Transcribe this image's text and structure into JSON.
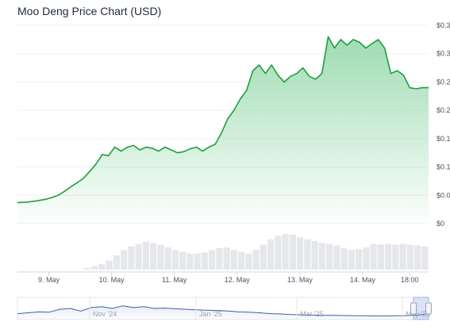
{
  "chart": {
    "title": "Moo Deng Price Chart (USD)"
  },
  "chart_data": {
    "type": "area",
    "title": "Moo Deng Price Chart (USD)",
    "xlabel": "",
    "ylabel": "",
    "x_ticks": [
      "9. May",
      "10. May",
      "11. May",
      "12. May",
      "13. May",
      "14. May",
      "18:00"
    ],
    "y_ticks": [
      "$0",
      "$0.0",
      "$0.1",
      "$0.15",
      "$0.2",
      "$0.2",
      "$0.3",
      "$0.3"
    ],
    "y_tick_values": [
      0,
      0.05,
      0.1,
      0.15,
      0.2,
      0.25,
      0.3,
      0.35
    ],
    "ylim": [
      0,
      0.35
    ],
    "xlim": [
      8.55,
      15.1
    ],
    "grid": true,
    "series": [
      {
        "values_x": [
          8.55,
          8.7,
          8.85,
          9.0,
          9.1,
          9.2,
          9.3,
          9.4,
          9.5,
          9.6,
          9.7,
          9.8,
          9.9,
          10.0,
          10.1,
          10.2,
          10.3,
          10.4,
          10.5,
          10.6,
          10.7,
          10.8,
          10.9,
          11.0,
          11.1,
          11.2,
          11.3,
          11.4,
          11.5,
          11.6,
          11.7,
          11.8,
          11.9,
          12.0,
          12.1,
          12.2,
          12.3,
          12.4,
          12.5,
          12.6,
          12.7,
          12.8,
          12.9,
          13.0,
          13.1,
          13.2,
          13.3,
          13.4,
          13.5,
          13.6,
          13.7,
          13.8,
          13.9,
          14.0,
          14.1,
          14.2,
          14.3,
          14.4,
          14.5,
          14.6,
          14.7,
          14.8,
          14.9,
          15.0,
          15.1
        ],
        "values_y": [
          0.037,
          0.038,
          0.04,
          0.043,
          0.046,
          0.05,
          0.057,
          0.065,
          0.072,
          0.08,
          0.092,
          0.105,
          0.122,
          0.12,
          0.135,
          0.128,
          0.135,
          0.138,
          0.13,
          0.135,
          0.133,
          0.128,
          0.135,
          0.13,
          0.125,
          0.127,
          0.132,
          0.135,
          0.128,
          0.135,
          0.14,
          0.16,
          0.185,
          0.2,
          0.22,
          0.235,
          0.27,
          0.28,
          0.265,
          0.28,
          0.262,
          0.25,
          0.26,
          0.265,
          0.275,
          0.26,
          0.255,
          0.265,
          0.33,
          0.31,
          0.325,
          0.315,
          0.325,
          0.32,
          0.31,
          0.318,
          0.325,
          0.31,
          0.265,
          0.27,
          0.262,
          0.24,
          0.238,
          0.24,
          0.24
        ]
      }
    ],
    "volume": [
      0,
      0,
      0,
      0,
      0,
      0,
      0,
      0,
      0,
      0.05,
      0.1,
      0.15,
      0.25,
      0.4,
      0.55,
      0.65,
      0.72,
      0.78,
      0.75,
      0.7,
      0.62,
      0.55,
      0.5,
      0.45,
      0.45,
      0.48,
      0.55,
      0.6,
      0.62,
      0.55,
      0.5,
      0.45,
      0.55,
      0.7,
      0.85,
      0.95,
      1.0,
      0.98,
      0.9,
      0.85,
      0.8,
      0.75,
      0.72,
      0.68,
      0.6,
      0.55,
      0.58,
      0.62,
      0.72,
      0.7,
      0.72,
      0.7,
      0.72,
      0.7,
      0.68,
      0.65
    ],
    "navigator": {
      "ticks": [
        "Nov '24",
        "Jan '25",
        "Mar '25",
        "May '25"
      ],
      "values": [
        0.2,
        0.25,
        0.3,
        0.28,
        0.45,
        0.5,
        0.35,
        0.55,
        0.6,
        0.5,
        0.65,
        0.55,
        0.6,
        0.5,
        0.52,
        0.48,
        0.45,
        0.42,
        0.4,
        0.38,
        0.35,
        0.3,
        0.28,
        0.25,
        0.2,
        0.18,
        0.15,
        0.13,
        0.12,
        0.1,
        0.1,
        0.09,
        0.08,
        0.08,
        0.07,
        0.07,
        0.08,
        0.09,
        0.12,
        0.2
      ]
    },
    "colors": {
      "line": "#1e9e3e",
      "fill_top": "#7fd19a",
      "volume": "#e5e7eb",
      "navigator": "#3b5fa8",
      "grid": "#eef0f3"
    }
  }
}
